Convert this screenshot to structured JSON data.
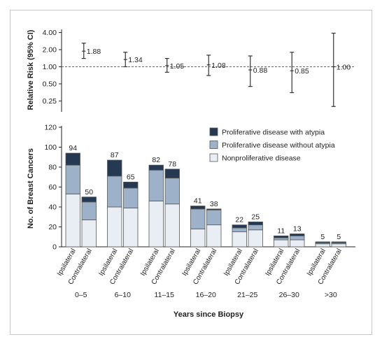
{
  "chart_data": [
    {
      "type": "scatter",
      "ylabel": "Relative Risk (95% CI)",
      "yscale": "log",
      "yticks": [
        "4.00",
        "2.00",
        "1.00",
        "0.50",
        "0.25"
      ],
      "yticks_values": [
        4.0,
        2.0,
        1.0,
        0.5,
        0.25
      ],
      "ylim": [
        0.18,
        4.3
      ],
      "reference_line": 1.0,
      "grid": false,
      "points": [
        {
          "group": "0–5",
          "rr": 1.88,
          "label": "1.88",
          "lo": 1.4,
          "hi": 2.6
        },
        {
          "group": "6–10",
          "rr": 1.34,
          "label": "1.34",
          "lo": 1.0,
          "hi": 1.8
        },
        {
          "group": "11–15",
          "rr": 1.05,
          "label": "1.05",
          "lo": 0.8,
          "hi": 1.4
        },
        {
          "group": "16–20",
          "rr": 1.08,
          "label": "1.08",
          "lo": 0.7,
          "hi": 1.6
        },
        {
          "group": "21–25",
          "rr": 0.88,
          "label": "0.88",
          "lo": 0.45,
          "hi": 1.55
        },
        {
          "group": "26–30",
          "rr": 0.85,
          "label": "0.85",
          "lo": 0.35,
          "hi": 1.8
        },
        {
          "group": ">30",
          "rr": 1.0,
          "label": "1.00",
          "lo": 0.2,
          "hi": 3.9
        }
      ]
    },
    {
      "type": "bar",
      "stacked": true,
      "ylabel": "No. of Breast Cancers",
      "xlabel": "Years since Biopsy",
      "ylim": [
        0,
        120
      ],
      "yticks": [
        0,
        20,
        40,
        60,
        80,
        100,
        120
      ],
      "grid": false,
      "legend_position": "top-right",
      "groups": [
        "0–5",
        "6–10",
        "11–15",
        "16–20",
        "21–25",
        "26–30",
        ">30"
      ],
      "bar_categories": [
        "Ipsilateral",
        "Contralateral"
      ],
      "series": [
        {
          "name": "Proliferative disease with atypia",
          "color": "#253a52"
        },
        {
          "name": "Proliferative disease without atypia",
          "color": "#9db2c8"
        },
        {
          "name": "Nonproliferative disease",
          "color": "#e9eef5"
        }
      ],
      "legend_order": [
        0,
        1,
        2
      ],
      "bars": [
        {
          "group": "0–5",
          "category": "Ipsilateral",
          "values": [
            12,
            29,
            53
          ],
          "total_label": "94"
        },
        {
          "group": "0–5",
          "category": "Contralateral",
          "values": [
            5,
            18,
            27
          ],
          "total_label": "50"
        },
        {
          "group": "6–10",
          "category": "Ipsilateral",
          "values": [
            16,
            31,
            40
          ],
          "total_label": "87"
        },
        {
          "group": "6–10",
          "category": "Contralateral",
          "values": [
            6,
            20,
            39
          ],
          "total_label": "65"
        },
        {
          "group": "11–15",
          "category": "Ipsilateral",
          "values": [
            5,
            31,
            46
          ],
          "total_label": "82"
        },
        {
          "group": "11–15",
          "category": "Contralateral",
          "values": [
            9,
            26,
            43
          ],
          "total_label": "78"
        },
        {
          "group": "16–20",
          "category": "Ipsilateral",
          "values": [
            3,
            20,
            18
          ],
          "total_label": "41"
        },
        {
          "group": "16–20",
          "category": "Contralateral",
          "values": [
            1,
            15,
            22
          ],
          "total_label": "38"
        },
        {
          "group": "21–25",
          "category": "Ipsilateral",
          "values": [
            3,
            4,
            15
          ],
          "total_label": "22"
        },
        {
          "group": "21–25",
          "category": "Contralateral",
          "values": [
            3,
            5,
            17
          ],
          "total_label": "25"
        },
        {
          "group": "26–30",
          "category": "Ipsilateral",
          "values": [
            2,
            2,
            7
          ],
          "total_label": "11"
        },
        {
          "group": "26–30",
          "category": "Contralateral",
          "values": [
            2,
            4,
            7
          ],
          "total_label": "13"
        },
        {
          "group": ">30",
          "category": "Ipsilateral",
          "values": [
            1,
            1,
            3
          ],
          "total_label": "5"
        },
        {
          "group": ">30",
          "category": "Contralateral",
          "values": [
            1,
            1,
            3
          ],
          "total_label": "5"
        }
      ]
    }
  ]
}
